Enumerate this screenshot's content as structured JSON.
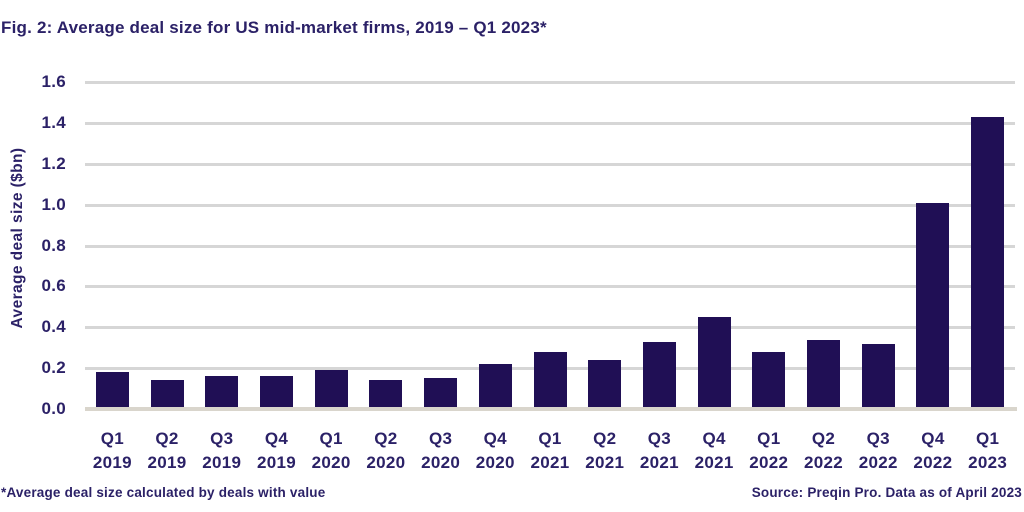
{
  "title": "Fig. 2: Average deal size for US mid-market firms, 2019 – Q1 2023*",
  "footnote": "*Average deal size calculated by deals with value",
  "source": "Source: Preqin Pro. Data as of April 2023",
  "colors": {
    "bar": "#200f55",
    "text": "#2b2167",
    "gridline": "#d6d6d6",
    "baseline": "#d9d5cc",
    "background": "#ffffff"
  },
  "chart_data": {
    "type": "bar",
    "title": "Fig. 2: Average deal size for US mid-market firms, 2019 – Q1 2023*",
    "xlabel": "",
    "ylabel": "Average deal size ($bn)",
    "categories": [
      "Q1 2019",
      "Q2 2019",
      "Q3 2019",
      "Q4 2019",
      "Q1 2020",
      "Q2 2020",
      "Q3 2020",
      "Q4 2020",
      "Q1 2021",
      "Q2 2021",
      "Q3 2021",
      "Q4 2021",
      "Q1 2022",
      "Q2 2022",
      "Q3 2022",
      "Q4 2022",
      "Q1 2023"
    ],
    "values": [
      0.18,
      0.14,
      0.16,
      0.16,
      0.19,
      0.14,
      0.15,
      0.22,
      0.28,
      0.24,
      0.33,
      0.45,
      0.28,
      0.34,
      0.32,
      1.01,
      1.43
    ],
    "ylim": [
      0,
      1.6
    ],
    "yticks": [
      0.0,
      0.2,
      0.4,
      0.6,
      0.8,
      1.0,
      1.2,
      1.4,
      1.6
    ],
    "ytick_labels": [
      "0.0",
      "0.2",
      "0.4",
      "0.6",
      "0.8",
      "1.0",
      "1.2",
      "1.4",
      "1.6"
    ],
    "grid": true,
    "legend": false,
    "bar_color": "#200f55"
  }
}
